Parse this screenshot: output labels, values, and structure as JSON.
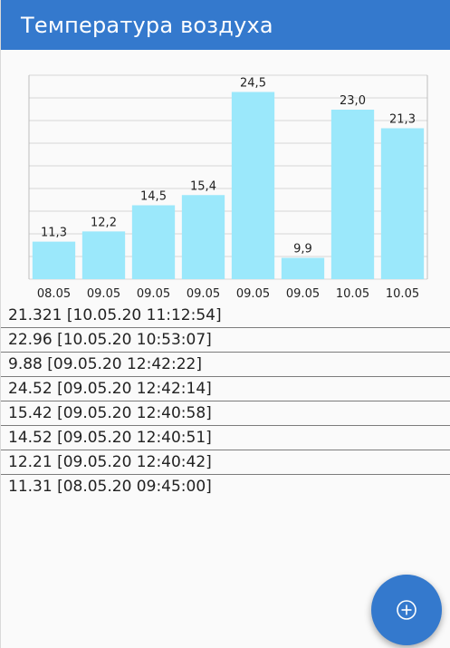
{
  "app_bar": {
    "title": "Температура воздуха",
    "color": "#3479cd"
  },
  "chart_data": {
    "type": "bar",
    "categories": [
      "08.05",
      "09.05",
      "09.05",
      "09.05",
      "09.05",
      "09.05",
      "10.05",
      "10.05"
    ],
    "values": [
      11.31,
      12.21,
      14.52,
      15.42,
      24.52,
      9.88,
      22.96,
      21.321
    ],
    "data_labels": [
      "11,3",
      "12,2",
      "14,5",
      "15,4",
      "24,5",
      "9,9",
      "23,0",
      "21,3"
    ],
    "ylim": [
      8,
      26
    ],
    "grid": true,
    "bar_color": "#9be8fb",
    "legend": "none"
  },
  "readings": [
    "21.321 [10.05.20 11:12:54]",
    "22.96 [10.05.20 10:53:07]",
    "9.88 [09.05.20 12:42:22]",
    "24.52 [09.05.20 12:42:14]",
    "15.42 [09.05.20 12:40:58]",
    "14.52 [09.05.20 12:40:51]",
    "12.21 [09.05.20 12:40:42]",
    "11.31 [08.05.20 09:45:00]"
  ],
  "fab": {
    "icon": "add-circle-icon",
    "color": "#3479cd"
  }
}
